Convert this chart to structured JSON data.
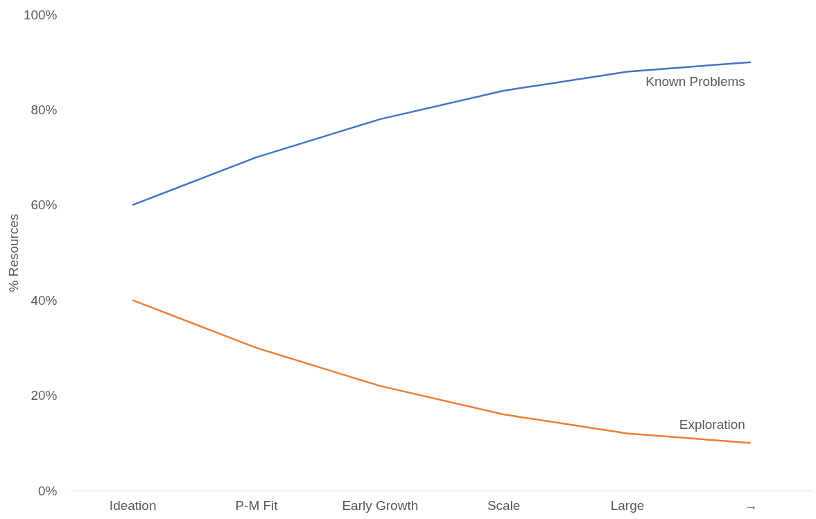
{
  "chart_data": {
    "type": "line",
    "ylabel": "% Resources",
    "categories": [
      "Ideation",
      "P-M Fit",
      "Early Growth",
      "Scale",
      "Large",
      "→"
    ],
    "series": [
      {
        "name": "Known Problems",
        "color": "#4472c4",
        "values": [
          60,
          70,
          78,
          84,
          88,
          90
        ]
      },
      {
        "name": "Exploration",
        "color": "#ed7d31",
        "values": [
          40,
          30,
          22,
          16,
          12,
          10
        ]
      }
    ],
    "ylim": [
      0,
      100
    ],
    "yticks": [
      {
        "value": 0,
        "label": "0%"
      },
      {
        "value": 20,
        "label": "20%"
      },
      {
        "value": 40,
        "label": "40%"
      },
      {
        "value": 60,
        "label": "60%"
      },
      {
        "value": 80,
        "label": "80%"
      },
      {
        "value": 100,
        "label": "100%"
      }
    ],
    "grid": false,
    "legend": false,
    "marker": "none",
    "line_style": "solid"
  }
}
